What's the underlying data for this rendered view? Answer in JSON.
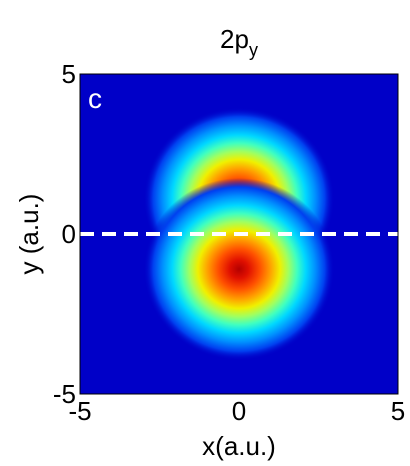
{
  "chart_data": {
    "type": "heatmap",
    "title": "2p",
    "title_subscript": "y",
    "panel_label": "c",
    "xlabel": "x(a.u.)",
    "ylabel": "y (a.u.)",
    "xlim": [
      -5,
      5
    ],
    "ylim": [
      -5,
      5
    ],
    "x_ticks": [
      -5,
      0,
      5
    ],
    "y_ticks": [
      -5,
      0,
      5
    ],
    "x_tick_labels": [
      "-5",
      "0",
      "5"
    ],
    "y_tick_labels": [
      "-5",
      "0",
      "5"
    ],
    "colormap": "jet",
    "background_color": "#0000c8",
    "dashed_line": {
      "y": 0,
      "color": "#ffffff",
      "style": "dashed"
    },
    "lobes": [
      {
        "x": 0,
        "y": 1.1,
        "value": 1.0
      },
      {
        "x": 0,
        "y": -1.1,
        "value": 1.0
      }
    ],
    "node_plane": "y = 0"
  }
}
